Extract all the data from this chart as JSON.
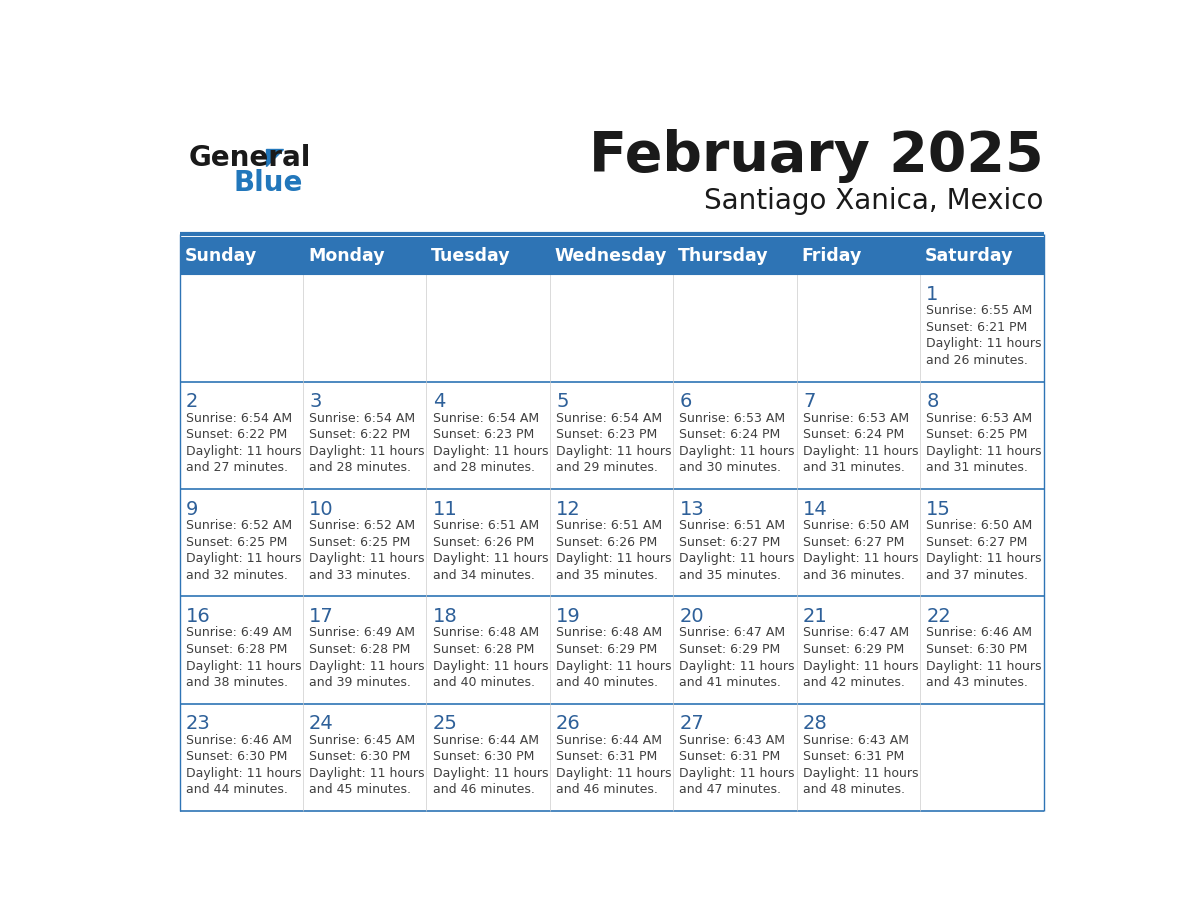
{
  "title": "February 2025",
  "subtitle": "Santiago Xanica, Mexico",
  "days_of_week": [
    "Sunday",
    "Monday",
    "Tuesday",
    "Wednesday",
    "Thursday",
    "Friday",
    "Saturday"
  ],
  "header_bg": "#2E74B5",
  "header_text": "#FFFFFF",
  "cell_bg_light": "#FFFFFF",
  "border_color": "#2E74B5",
  "day_num_color": "#2E6099",
  "text_color": "#404040",
  "calendar_data": [
    [
      null,
      null,
      null,
      null,
      null,
      null,
      {
        "day": 1,
        "sunrise": "6:55 AM",
        "sunset": "6:21 PM",
        "daylight_h": "11 hours",
        "daylight_m": "26 minutes."
      }
    ],
    [
      {
        "day": 2,
        "sunrise": "6:54 AM",
        "sunset": "6:22 PM",
        "daylight_h": "11 hours",
        "daylight_m": "27 minutes."
      },
      {
        "day": 3,
        "sunrise": "6:54 AM",
        "sunset": "6:22 PM",
        "daylight_h": "11 hours",
        "daylight_m": "28 minutes."
      },
      {
        "day": 4,
        "sunrise": "6:54 AM",
        "sunset": "6:23 PM",
        "daylight_h": "11 hours",
        "daylight_m": "28 minutes."
      },
      {
        "day": 5,
        "sunrise": "6:54 AM",
        "sunset": "6:23 PM",
        "daylight_h": "11 hours",
        "daylight_m": "29 minutes."
      },
      {
        "day": 6,
        "sunrise": "6:53 AM",
        "sunset": "6:24 PM",
        "daylight_h": "11 hours",
        "daylight_m": "30 minutes."
      },
      {
        "day": 7,
        "sunrise": "6:53 AM",
        "sunset": "6:24 PM",
        "daylight_h": "11 hours",
        "daylight_m": "31 minutes."
      },
      {
        "day": 8,
        "sunrise": "6:53 AM",
        "sunset": "6:25 PM",
        "daylight_h": "11 hours",
        "daylight_m": "31 minutes."
      }
    ],
    [
      {
        "day": 9,
        "sunrise": "6:52 AM",
        "sunset": "6:25 PM",
        "daylight_h": "11 hours",
        "daylight_m": "32 minutes."
      },
      {
        "day": 10,
        "sunrise": "6:52 AM",
        "sunset": "6:25 PM",
        "daylight_h": "11 hours",
        "daylight_m": "33 minutes."
      },
      {
        "day": 11,
        "sunrise": "6:51 AM",
        "sunset": "6:26 PM",
        "daylight_h": "11 hours",
        "daylight_m": "34 minutes."
      },
      {
        "day": 12,
        "sunrise": "6:51 AM",
        "sunset": "6:26 PM",
        "daylight_h": "11 hours",
        "daylight_m": "35 minutes."
      },
      {
        "day": 13,
        "sunrise": "6:51 AM",
        "sunset": "6:27 PM",
        "daylight_h": "11 hours",
        "daylight_m": "35 minutes."
      },
      {
        "day": 14,
        "sunrise": "6:50 AM",
        "sunset": "6:27 PM",
        "daylight_h": "11 hours",
        "daylight_m": "36 minutes."
      },
      {
        "day": 15,
        "sunrise": "6:50 AM",
        "sunset": "6:27 PM",
        "daylight_h": "11 hours",
        "daylight_m": "37 minutes."
      }
    ],
    [
      {
        "day": 16,
        "sunrise": "6:49 AM",
        "sunset": "6:28 PM",
        "daylight_h": "11 hours",
        "daylight_m": "38 minutes."
      },
      {
        "day": 17,
        "sunrise": "6:49 AM",
        "sunset": "6:28 PM",
        "daylight_h": "11 hours",
        "daylight_m": "39 minutes."
      },
      {
        "day": 18,
        "sunrise": "6:48 AM",
        "sunset": "6:28 PM",
        "daylight_h": "11 hours",
        "daylight_m": "40 minutes."
      },
      {
        "day": 19,
        "sunrise": "6:48 AM",
        "sunset": "6:29 PM",
        "daylight_h": "11 hours",
        "daylight_m": "40 minutes."
      },
      {
        "day": 20,
        "sunrise": "6:47 AM",
        "sunset": "6:29 PM",
        "daylight_h": "11 hours",
        "daylight_m": "41 minutes."
      },
      {
        "day": 21,
        "sunrise": "6:47 AM",
        "sunset": "6:29 PM",
        "daylight_h": "11 hours",
        "daylight_m": "42 minutes."
      },
      {
        "day": 22,
        "sunrise": "6:46 AM",
        "sunset": "6:30 PM",
        "daylight_h": "11 hours",
        "daylight_m": "43 minutes."
      }
    ],
    [
      {
        "day": 23,
        "sunrise": "6:46 AM",
        "sunset": "6:30 PM",
        "daylight_h": "11 hours",
        "daylight_m": "44 minutes."
      },
      {
        "day": 24,
        "sunrise": "6:45 AM",
        "sunset": "6:30 PM",
        "daylight_h": "11 hours",
        "daylight_m": "45 minutes."
      },
      {
        "day": 25,
        "sunrise": "6:44 AM",
        "sunset": "6:30 PM",
        "daylight_h": "11 hours",
        "daylight_m": "46 minutes."
      },
      {
        "day": 26,
        "sunrise": "6:44 AM",
        "sunset": "6:31 PM",
        "daylight_h": "11 hours",
        "daylight_m": "46 minutes."
      },
      {
        "day": 27,
        "sunrise": "6:43 AM",
        "sunset": "6:31 PM",
        "daylight_h": "11 hours",
        "daylight_m": "47 minutes."
      },
      {
        "day": 28,
        "sunrise": "6:43 AM",
        "sunset": "6:31 PM",
        "daylight_h": "11 hours",
        "daylight_m": "48 minutes."
      },
      null
    ]
  ],
  "logo_general_color": "#1A1A1A",
  "logo_blue_color": "#2277BB",
  "logo_triangle_color": "#2277BB"
}
